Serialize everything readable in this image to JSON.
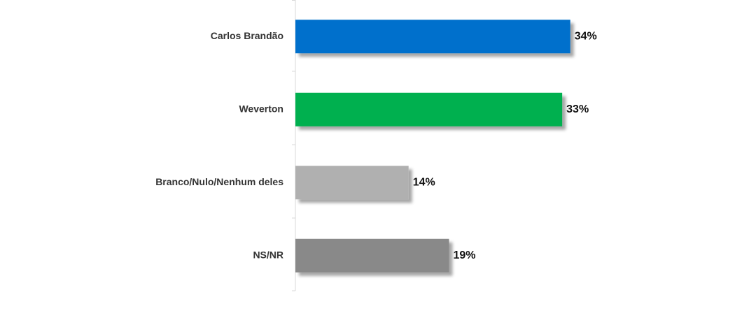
{
  "chart_data": {
    "type": "bar",
    "orientation": "horizontal",
    "categories": [
      "Carlos Brandão",
      "Weverton",
      "Branco/Nulo/Nenhum deles",
      "NS/NR"
    ],
    "values": [
      34,
      33,
      14,
      19
    ],
    "value_labels": [
      "34%",
      "33%",
      "14%",
      "19%"
    ],
    "colors": [
      "#0070cc",
      "#00b050",
      "#b0b0b0",
      "#898989"
    ]
  }
}
